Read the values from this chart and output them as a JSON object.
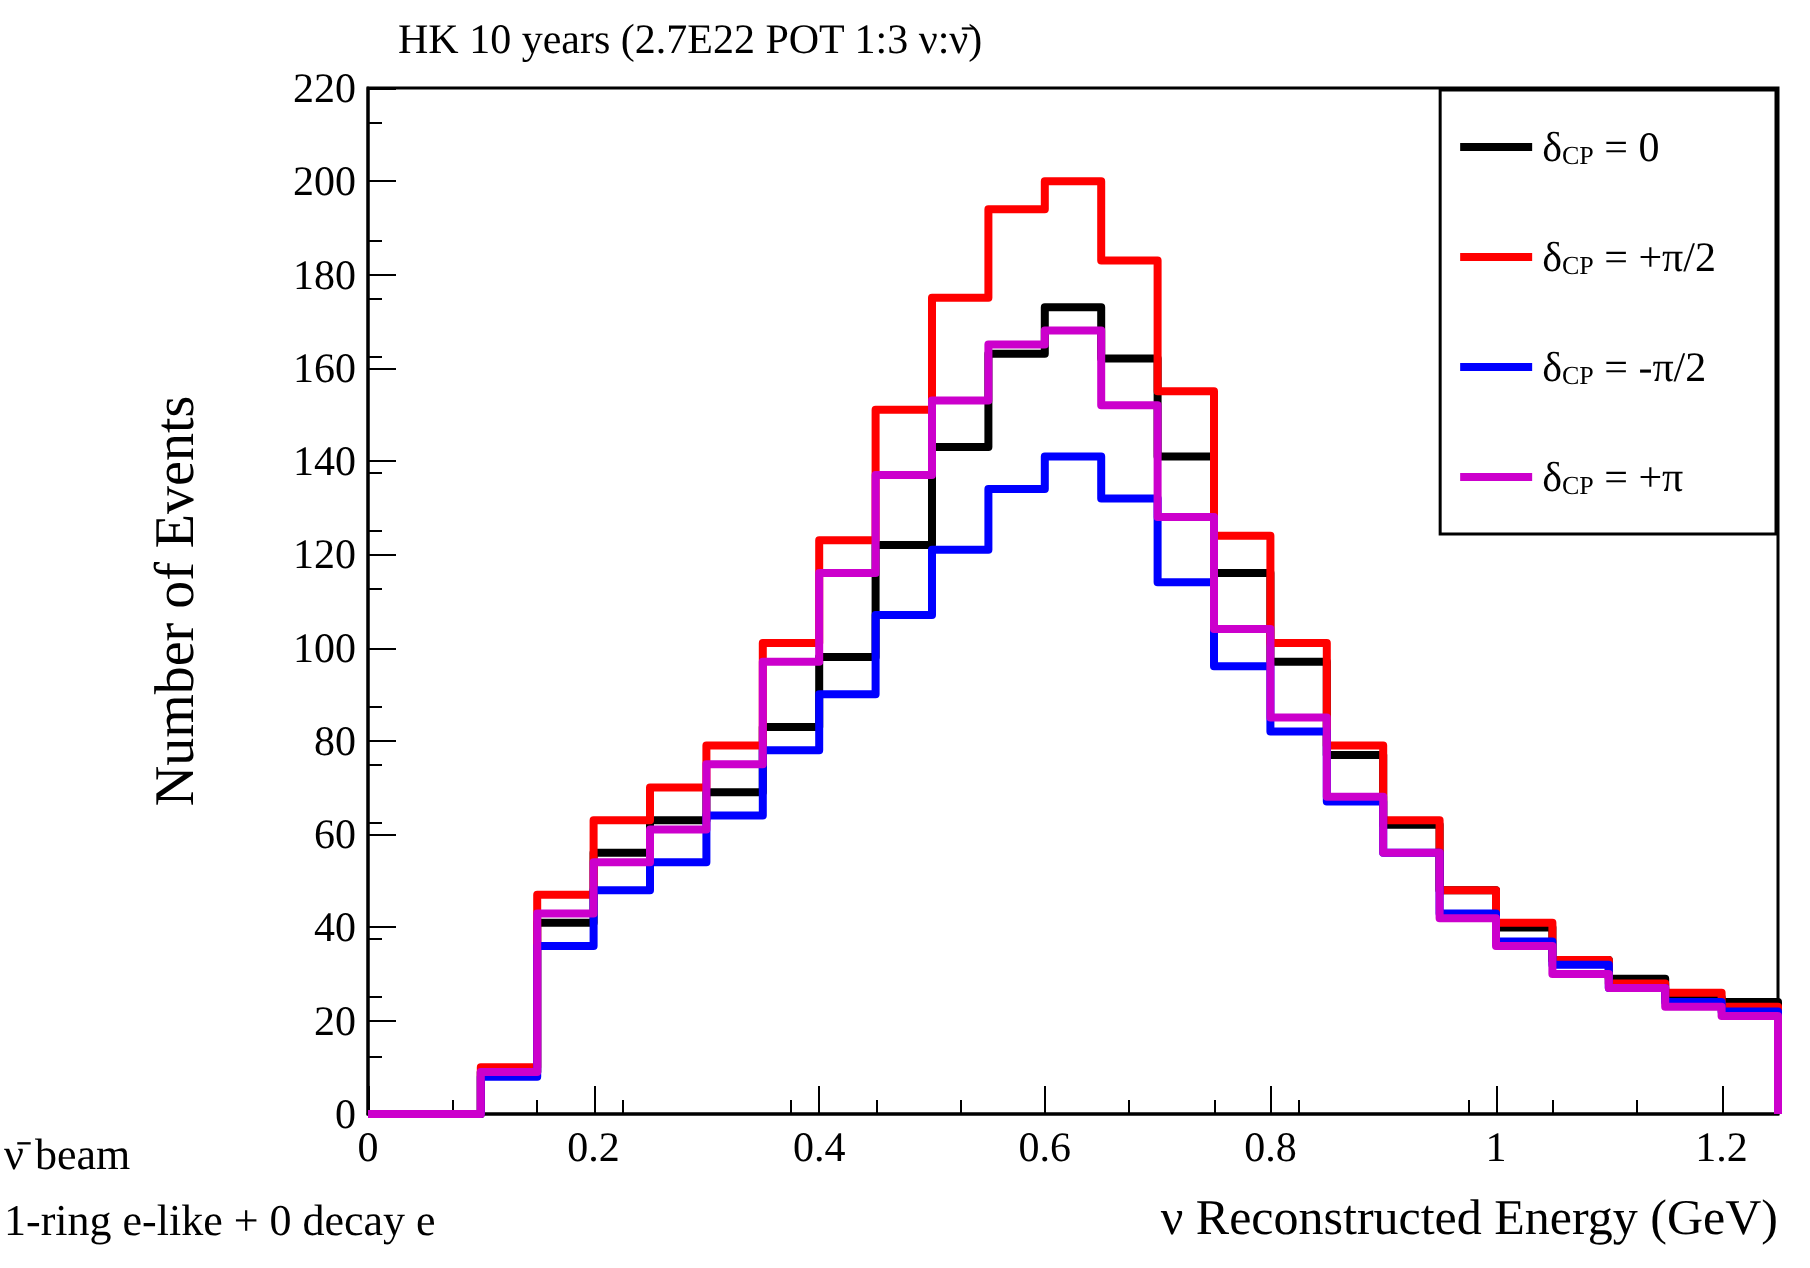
{
  "chart_data": {
    "type": "histogram",
    "title": "HK 10 years (2.7E22 POT 1:3 ν:ν̄)",
    "xlabel": "ν Reconstructed Energy (GeV)",
    "ylabel": "Number of Events",
    "annotations": [
      "ν̄ beam",
      "1-ring e-like + 0 decay e"
    ],
    "bins": [
      0,
      0.05,
      0.1,
      0.15,
      0.2,
      0.25,
      0.3,
      0.35,
      0.4,
      0.45,
      0.5,
      0.55,
      0.6,
      0.65,
      0.7,
      0.75,
      0.8,
      0.85,
      0.9,
      0.95,
      1.0,
      1.05,
      1.1,
      1.15,
      1.2,
      1.25
    ],
    "series": [
      {
        "name": "δ$_{CP}$ = 0",
        "color": "#000000",
        "values": [
          0,
          0,
          9,
          41,
          56,
          63,
          69,
          83,
          98,
          122,
          143,
          163,
          173,
          162,
          141,
          116,
          97,
          77,
          62,
          48,
          40,
          33,
          29,
          25,
          24
        ]
      },
      {
        "name": "δ$_{CP}$ = +π/2",
        "color": "#ff0000",
        "values": [
          0,
          0,
          10,
          47,
          63,
          70,
          79,
          101,
          123,
          151,
          175,
          194,
          200,
          183,
          155,
          124,
          101,
          79,
          63,
          48,
          41,
          33,
          28,
          26,
          23
        ]
      },
      {
        "name": "δ$_{CP}$ = -π/2",
        "color": "#0000ff",
        "values": [
          0,
          0,
          8,
          36,
          48,
          54,
          64,
          78,
          90,
          107,
          121,
          134,
          141,
          132,
          114,
          96,
          82,
          67,
          56,
          43,
          37,
          32,
          27,
          24,
          22
        ]
      },
      {
        "name": "δ$_{CP}$ = +π",
        "color": "#cc00cc",
        "values": [
          0,
          0,
          9,
          43,
          54,
          61,
          75,
          97,
          116,
          137,
          153,
          165,
          168,
          152,
          128,
          104,
          85,
          68,
          56,
          42,
          36,
          30,
          27,
          23,
          21
        ]
      }
    ],
    "xlim": [
      0,
      1.25
    ],
    "xticks": [
      0,
      0.2,
      0.4,
      0.6,
      0.8,
      1,
      1.2
    ],
    "ylim": [
      0,
      220
    ],
    "yticks": [
      0,
      20,
      40,
      60,
      80,
      100,
      120,
      140,
      160,
      180,
      200,
      220
    ],
    "legend": "top right",
    "grid": false,
    "line_style": "solid"
  }
}
